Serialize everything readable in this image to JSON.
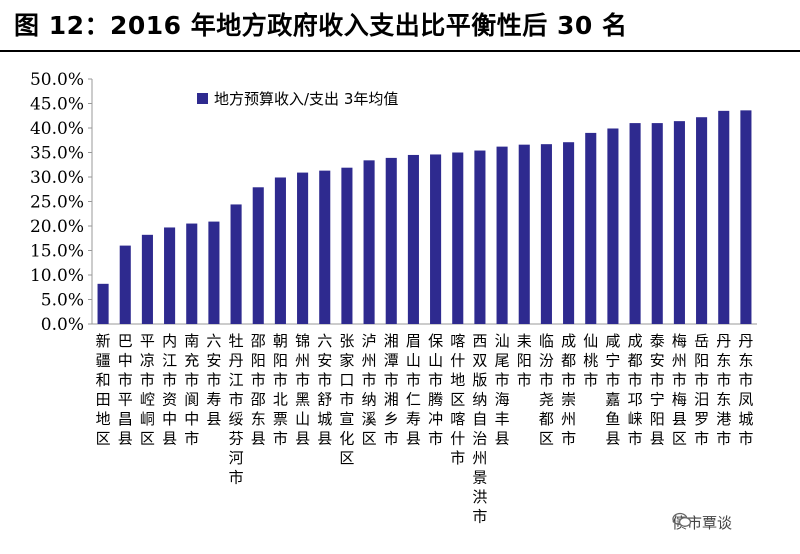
{
  "header": {
    "title": "图 12：2016 年地方政府收入支出比平衡性后 30 名"
  },
  "watermark": {
    "text": "债市覃谈",
    "icon": "wechat-icon"
  },
  "chart_data": {
    "type": "bar",
    "title": "",
    "xlabel": "",
    "ylabel": "",
    "ylim": [
      0,
      50
    ],
    "y_ticks": [
      "0.0%",
      "5.0%",
      "10.0%",
      "15.0%",
      "20.0%",
      "25.0%",
      "30.0%",
      "35.0%",
      "40.0%",
      "45.0%",
      "50.0%"
    ],
    "grid": false,
    "legend_position": "top-left",
    "bar_color": "#2e2a8f",
    "categories": [
      "新疆和田地区",
      "巴中市平昌县",
      "平凉市崆峒区",
      "内江市资中县",
      "南充市阆中市",
      "六安市寿县",
      "牡丹江市绥芬河市",
      "邵阳市邵东县",
      "朝阳市北票市",
      "锦州市黑山县",
      "六安市舒城县",
      "张家口市宣化区",
      "泸州市纳溪区",
      "湘潭市湘乡市",
      "眉山市仁寿县",
      "保山市腾冲市",
      "喀什地区喀什市",
      "西双版纳自治州景洪市",
      "汕尾市海丰县",
      "耒阳市",
      "临汾市尧都区",
      "成都市崇州市",
      "仙桃市",
      "咸宁市嘉鱼县",
      "成都市邛崃市",
      "泰安市宁阳县",
      "梅州市梅县区",
      "岳阳市汨罗市",
      "丹东市东港市",
      "丹东市凤城市"
    ],
    "series": [
      {
        "name": "地方预算收入/支出 3年均值",
        "values": [
          8.2,
          16.0,
          18.2,
          19.7,
          20.5,
          20.9,
          24.4,
          27.9,
          29.9,
          30.9,
          31.3,
          31.9,
          33.4,
          33.9,
          34.5,
          34.6,
          35.0,
          35.4,
          36.2,
          36.6,
          36.7,
          37.1,
          39.0,
          39.9,
          41.0,
          41.0,
          41.4,
          42.2,
          43.5,
          43.6
        ]
      }
    ]
  }
}
